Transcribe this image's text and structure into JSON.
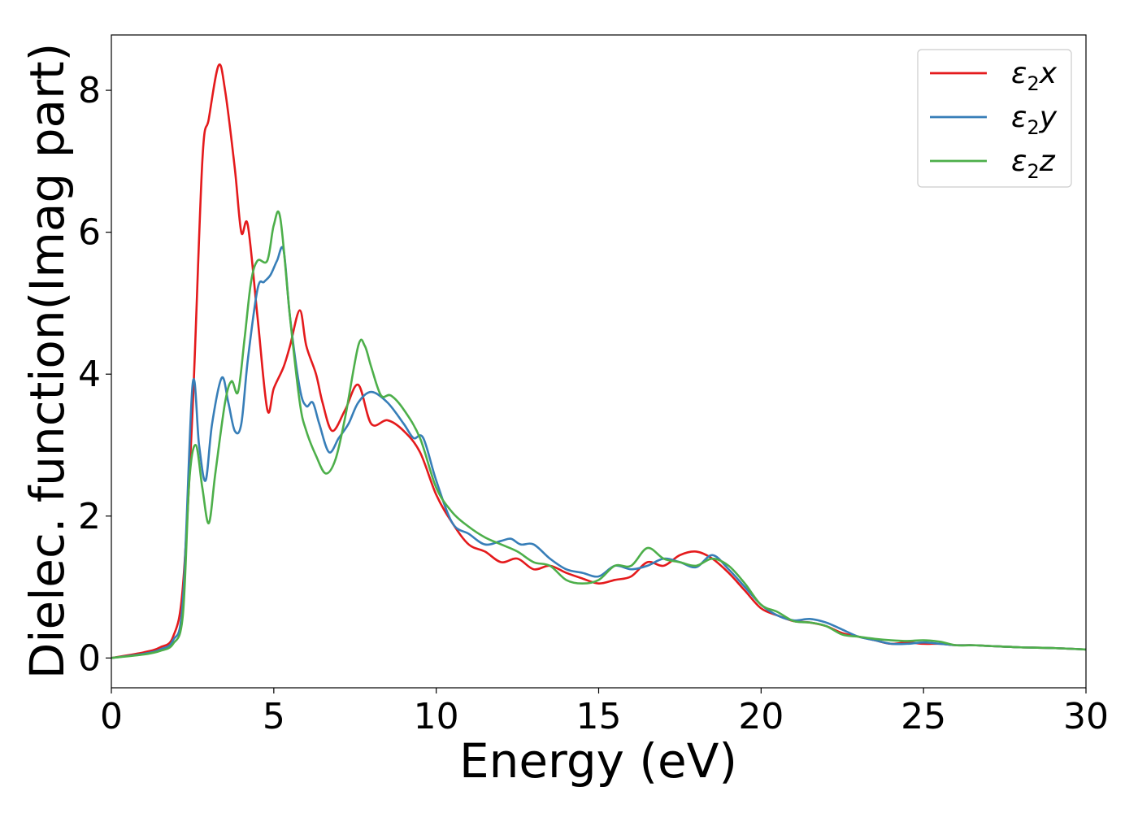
{
  "chart_data": {
    "type": "line",
    "title": "",
    "xlabel": "Energy (eV)",
    "ylabel": "Dielec. function(Imag part)",
    "xlim": [
      0,
      30
    ],
    "ylim": [
      -0.42,
      8.78
    ],
    "xticks": [
      0,
      5,
      10,
      15,
      20,
      25,
      30
    ],
    "xtick_labels": [
      "0",
      "5",
      "10",
      "15",
      "20",
      "25",
      "30"
    ],
    "yticks": [
      0,
      2,
      4,
      6,
      8
    ],
    "ytick_labels": [
      "0",
      "2",
      "4",
      "6",
      "8"
    ],
    "grid": false,
    "legend_position": "top-right",
    "series": [
      {
        "name": "ε₂x",
        "legend_main": "ε",
        "legend_sub": "2",
        "legend_suffix": "x",
        "color": "#e41a1c",
        "x": [
          0,
          1,
          1.5,
          1.9,
          2.2,
          2.5,
          2.8,
          3.0,
          3.3,
          3.5,
          3.8,
          4.0,
          4.2,
          4.5,
          4.8,
          5.0,
          5.3,
          5.5,
          5.8,
          6.0,
          6.3,
          6.5,
          6.8,
          7.2,
          7.6,
          8.0,
          8.5,
          9.0,
          9.5,
          10.0,
          10.5,
          11.0,
          11.5,
          12.0,
          12.5,
          13.0,
          13.5,
          14.0,
          14.5,
          15.0,
          15.5,
          16.0,
          16.5,
          17.0,
          17.5,
          18.0,
          18.5,
          19.0,
          19.5,
          20.0,
          20.5,
          21.0,
          21.5,
          22.0,
          22.5,
          23.0,
          23.5,
          24.0,
          24.5,
          25.0,
          25.5,
          26.0,
          26.5,
          27.0,
          28.0,
          29.0,
          30.0
        ],
        "y": [
          0.0,
          0.08,
          0.15,
          0.3,
          1.0,
          3.5,
          7.0,
          7.6,
          8.35,
          8.0,
          6.9,
          6.0,
          6.1,
          4.8,
          3.5,
          3.8,
          4.1,
          4.4,
          4.9,
          4.4,
          4.0,
          3.6,
          3.2,
          3.5,
          3.85,
          3.3,
          3.35,
          3.2,
          2.9,
          2.3,
          1.9,
          1.6,
          1.5,
          1.35,
          1.4,
          1.25,
          1.3,
          1.2,
          1.12,
          1.05,
          1.1,
          1.15,
          1.35,
          1.3,
          1.45,
          1.5,
          1.4,
          1.2,
          0.95,
          0.7,
          0.6,
          0.52,
          0.5,
          0.45,
          0.35,
          0.3,
          0.25,
          0.2,
          0.22,
          0.2,
          0.2,
          0.18,
          0.18,
          0.17,
          0.15,
          0.14,
          0.12
        ]
      },
      {
        "name": "ε₂y",
        "legend_main": "ε",
        "legend_sub": "2",
        "legend_suffix": "y",
        "color": "#377eb8",
        "x": [
          0,
          1,
          1.5,
          1.9,
          2.2,
          2.5,
          2.7,
          2.9,
          3.1,
          3.4,
          3.6,
          3.8,
          4.0,
          4.2,
          4.5,
          4.7,
          4.9,
          5.1,
          5.3,
          5.5,
          5.8,
          6.0,
          6.2,
          6.4,
          6.7,
          7.0,
          7.3,
          7.6,
          8.0,
          8.5,
          9.0,
          9.3,
          9.6,
          10.0,
          10.5,
          11.0,
          11.5,
          12.0,
          12.3,
          12.6,
          13.0,
          13.5,
          14.0,
          14.5,
          15.0,
          15.5,
          16.0,
          16.5,
          17.0,
          17.5,
          18.0,
          18.5,
          19.0,
          19.5,
          20.0,
          20.5,
          21.0,
          21.5,
          22.0,
          22.5,
          23.0,
          23.5,
          24.0,
          24.5,
          25.0,
          25.5,
          26.0,
          26.5,
          27.0,
          28.0,
          29.0,
          30.0
        ],
        "y": [
          0.0,
          0.06,
          0.12,
          0.25,
          0.8,
          3.85,
          3.0,
          2.5,
          3.3,
          3.95,
          3.6,
          3.2,
          3.3,
          4.2,
          5.2,
          5.3,
          5.4,
          5.6,
          5.75,
          4.8,
          3.8,
          3.55,
          3.6,
          3.3,
          2.9,
          3.1,
          3.3,
          3.6,
          3.75,
          3.6,
          3.3,
          3.1,
          3.1,
          2.5,
          1.9,
          1.75,
          1.6,
          1.65,
          1.68,
          1.6,
          1.6,
          1.4,
          1.25,
          1.2,
          1.15,
          1.3,
          1.25,
          1.3,
          1.4,
          1.35,
          1.28,
          1.45,
          1.25,
          1.0,
          0.75,
          0.6,
          0.53,
          0.55,
          0.5,
          0.4,
          0.3,
          0.25,
          0.2,
          0.2,
          0.22,
          0.2,
          0.18,
          0.18,
          0.17,
          0.15,
          0.14,
          0.12
        ]
      },
      {
        "name": "ε₂z",
        "legend_main": "ε",
        "legend_sub": "2",
        "legend_suffix": "z",
        "color": "#4daf4a",
        "x": [
          0,
          1,
          1.5,
          1.9,
          2.2,
          2.4,
          2.6,
          2.8,
          3.0,
          3.2,
          3.5,
          3.7,
          3.9,
          4.1,
          4.3,
          4.5,
          4.8,
          5.0,
          5.2,
          5.5,
          5.8,
          6.0,
          6.3,
          6.6,
          6.9,
          7.2,
          7.6,
          7.8,
          8.0,
          8.3,
          8.6,
          9.0,
          9.5,
          10.0,
          10.5,
          11.0,
          11.5,
          12.0,
          12.5,
          13.0,
          13.5,
          14.0,
          14.5,
          15.0,
          15.5,
          16.0,
          16.5,
          17.0,
          17.5,
          18.0,
          18.5,
          19.0,
          19.5,
          20.0,
          20.5,
          21.0,
          21.5,
          22.0,
          22.5,
          23.0,
          23.5,
          24.0,
          24.5,
          25.0,
          25.5,
          26.0,
          26.5,
          27.0,
          28.0,
          29.0,
          30.0
        ],
        "y": [
          0.0,
          0.05,
          0.1,
          0.2,
          0.6,
          2.5,
          3.0,
          2.4,
          1.9,
          2.6,
          3.6,
          3.9,
          3.75,
          4.5,
          5.3,
          5.6,
          5.6,
          6.1,
          6.2,
          4.8,
          3.6,
          3.2,
          2.85,
          2.6,
          2.8,
          3.4,
          4.4,
          4.4,
          4.1,
          3.7,
          3.7,
          3.5,
          3.1,
          2.4,
          2.05,
          1.85,
          1.7,
          1.6,
          1.5,
          1.35,
          1.3,
          1.1,
          1.05,
          1.1,
          1.3,
          1.3,
          1.55,
          1.4,
          1.35,
          1.3,
          1.4,
          1.3,
          1.05,
          0.75,
          0.65,
          0.52,
          0.5,
          0.45,
          0.33,
          0.3,
          0.27,
          0.25,
          0.24,
          0.25,
          0.23,
          0.18,
          0.18,
          0.17,
          0.15,
          0.14,
          0.12
        ]
      }
    ]
  }
}
